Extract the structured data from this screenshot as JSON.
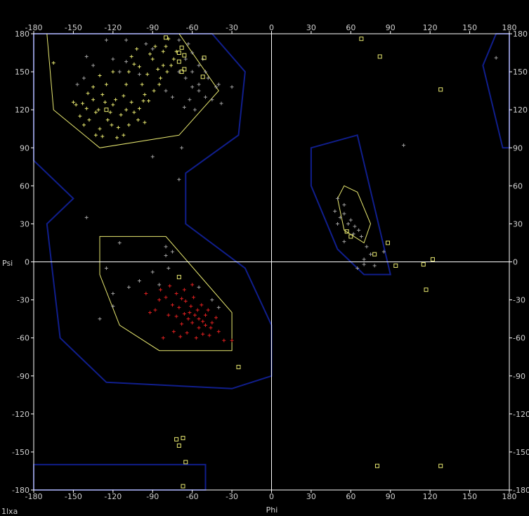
{
  "title": "1lxa",
  "chart_data": {
    "type": "scatter",
    "title": "1lxa",
    "xlabel": "Phi",
    "ylabel": "Psi",
    "xlim": [
      -180,
      180
    ],
    "ylim": [
      -180,
      180
    ],
    "xticks": [
      -180,
      -150,
      -120,
      -90,
      -60,
      -30,
      0,
      30,
      60,
      90,
      120,
      150,
      180
    ],
    "yticks": [
      -180,
      -150,
      -120,
      -90,
      -60,
      -30,
      0,
      30,
      60,
      90,
      120,
      150,
      180
    ],
    "grid": false,
    "zero_lines": true,
    "colors": {
      "background": "#000000",
      "axis": "#ffffff",
      "allowed_region": "#101e8c",
      "core_region": "#e8e870",
      "helix_residue": "#e02020",
      "sheet_residue": "#e8e870",
      "other_residue": "#a0a0a0",
      "glycine": "#e8e870"
    },
    "regions": [
      {
        "kind": "allowed",
        "points": [
          [
            -180,
            180
          ],
          [
            -60,
            180
          ],
          [
            -45,
            180
          ],
          [
            -20,
            150
          ],
          [
            -25,
            100
          ],
          [
            -65,
            70
          ],
          [
            -65,
            30
          ],
          [
            -20,
            -5
          ],
          [
            0,
            -50
          ],
          [
            0,
            -90
          ],
          [
            -30,
            -100
          ],
          [
            -125,
            -95
          ],
          [
            -160,
            -60
          ],
          [
            -170,
            30
          ],
          [
            -150,
            50
          ],
          [
            -180,
            80
          ]
        ]
      },
      {
        "kind": "allowed",
        "points": [
          [
            -180,
            -160
          ],
          [
            -50,
            -160
          ],
          [
            -50,
            -180
          ],
          [
            -180,
            -180
          ]
        ]
      },
      {
        "kind": "allowed",
        "points": [
          [
            170,
            180
          ],
          [
            180,
            180
          ],
          [
            180,
            90
          ],
          [
            175,
            90
          ],
          [
            160,
            155
          ]
        ]
      },
      {
        "kind": "allowed",
        "points": [
          [
            30,
            90
          ],
          [
            65,
            100
          ],
          [
            90,
            -10
          ],
          [
            70,
            -10
          ],
          [
            50,
            10
          ],
          [
            30,
            60
          ]
        ]
      },
      {
        "kind": "core",
        "points": [
          [
            -170,
            180
          ],
          [
            -70,
            180
          ],
          [
            -40,
            135
          ],
          [
            -70,
            100
          ],
          [
            -130,
            90
          ],
          [
            -165,
            120
          ]
        ]
      },
      {
        "kind": "core",
        "points": [
          [
            -130,
            20
          ],
          [
            -80,
            20
          ],
          [
            -55,
            -10
          ],
          [
            -30,
            -40
          ],
          [
            -30,
            -70
          ],
          [
            -85,
            -70
          ],
          [
            -115,
            -50
          ],
          [
            -130,
            -10
          ]
        ]
      },
      {
        "kind": "core",
        "points": [
          [
            55,
            60
          ],
          [
            65,
            55
          ],
          [
            75,
            30
          ],
          [
            70,
            15
          ],
          [
            55,
            25
          ],
          [
            50,
            50
          ]
        ]
      }
    ],
    "series": [
      {
        "type": "helix",
        "marker": "plus",
        "points": [
          [
            -72,
            -25
          ],
          [
            -68,
            -29
          ],
          [
            -65,
            -31
          ],
          [
            -62,
            -40
          ],
          [
            -58,
            -42
          ],
          [
            -55,
            -45
          ],
          [
            -52,
            -47
          ],
          [
            -50,
            -50
          ],
          [
            -48,
            -38
          ],
          [
            -45,
            -48
          ],
          [
            -55,
            -52
          ],
          [
            -60,
            -48
          ],
          [
            -63,
            -45
          ],
          [
            -66,
            -41
          ],
          [
            -70,
            -36
          ],
          [
            -75,
            -34
          ],
          [
            -80,
            -28
          ],
          [
            -85,
            -30
          ],
          [
            -88,
            -38
          ],
          [
            -92,
            -40
          ],
          [
            -95,
            -25
          ],
          [
            -78,
            -42
          ],
          [
            -74,
            -55
          ],
          [
            -57,
            -60
          ],
          [
            -52,
            -57
          ],
          [
            -40,
            -55
          ],
          [
            -42,
            -44
          ],
          [
            -46,
            -52
          ],
          [
            -61,
            -35
          ],
          [
            -68,
            -49
          ],
          [
            -82,
            -60
          ],
          [
            -72,
            -43
          ],
          [
            -64,
            -56
          ],
          [
            -56,
            -38
          ],
          [
            -50,
            -42
          ],
          [
            -59,
            -28
          ],
          [
            -36,
            -62
          ],
          [
            -30,
            -62
          ],
          [
            -77,
            -19
          ],
          [
            -84,
            -22
          ],
          [
            -66,
            -22
          ],
          [
            -60,
            -18
          ],
          [
            -47,
            -58
          ],
          [
            -53,
            -34
          ],
          [
            -69,
            -59
          ]
        ]
      },
      {
        "type": "sheet",
        "marker": "plus",
        "points": [
          [
            -165,
            157
          ],
          [
            -148,
            124
          ],
          [
            -145,
            115
          ],
          [
            -142,
            108
          ],
          [
            -140,
            121
          ],
          [
            -138,
            112
          ],
          [
            -135,
            128
          ],
          [
            -133,
            118
          ],
          [
            -131,
            120
          ],
          [
            -130,
            105
          ],
          [
            -128,
            132
          ],
          [
            -126,
            126
          ],
          [
            -124,
            112
          ],
          [
            -122,
            118
          ],
          [
            -120,
            124
          ],
          [
            -118,
            128
          ],
          [
            -116,
            106
          ],
          [
            -114,
            116
          ],
          [
            -112,
            131
          ],
          [
            -110,
            140
          ],
          [
            -108,
            150
          ],
          [
            -106,
            162
          ],
          [
            -104,
            156
          ],
          [
            -102,
            168
          ],
          [
            -100,
            154
          ],
          [
            -98,
            140
          ],
          [
            -96,
            132
          ],
          [
            -94,
            148
          ],
          [
            -92,
            164
          ],
          [
            -90,
            160
          ],
          [
            -88,
            170
          ],
          [
            -86,
            152
          ],
          [
            -84,
            145
          ],
          [
            -82,
            166
          ],
          [
            -80,
            170
          ],
          [
            -78,
            176
          ],
          [
            -76,
            155
          ],
          [
            -74,
            160
          ],
          [
            -72,
            166
          ],
          [
            -125,
            140
          ],
          [
            -120,
            150
          ],
          [
            -135,
            138
          ],
          [
            -130,
            147
          ],
          [
            -117,
            98
          ],
          [
            -112,
            100
          ],
          [
            -108,
            108
          ],
          [
            -104,
            118
          ],
          [
            -100,
            121
          ],
          [
            -97,
            127
          ],
          [
            -139,
            133
          ],
          [
            -143,
            125
          ],
          [
            -150,
            126
          ],
          [
            -128,
            99
          ],
          [
            -133,
            100
          ],
          [
            -121,
            108
          ],
          [
            -110,
            120
          ],
          [
            -106,
            126
          ],
          [
            -93,
            127
          ],
          [
            -89,
            135
          ],
          [
            -85,
            140
          ],
          [
            -82,
            155
          ],
          [
            -79,
            150
          ],
          [
            -96,
            110
          ],
          [
            -101,
            112
          ]
        ]
      },
      {
        "type": "other",
        "marker": "plus",
        "points": [
          [
            -70,
            150
          ],
          [
            -65,
            145
          ],
          [
            -60,
            138
          ],
          [
            -55,
            135
          ],
          [
            -50,
            130
          ],
          [
            -45,
            128
          ],
          [
            -40,
            140
          ],
          [
            -38,
            125
          ],
          [
            -30,
            138
          ],
          [
            -62,
            128
          ],
          [
            -58,
            120
          ],
          [
            -66,
            122
          ],
          [
            -55,
            155
          ],
          [
            -50,
            150
          ],
          [
            -70,
            65
          ],
          [
            -68,
            90
          ],
          [
            -90,
            83
          ],
          [
            -140,
            35
          ],
          [
            -115,
            15
          ],
          [
            -80,
            12
          ],
          [
            -75,
            8
          ],
          [
            -90,
            -8
          ],
          [
            -100,
            -15
          ],
          [
            -108,
            -20
          ],
          [
            -120,
            -25
          ],
          [
            -125,
            -5
          ],
          [
            -130,
            -45
          ],
          [
            -120,
            -35
          ],
          [
            -85,
            -18
          ],
          [
            -78,
            -5
          ],
          [
            -80,
            5
          ],
          [
            -120,
            160
          ],
          [
            -110,
            175
          ],
          [
            -125,
            175
          ],
          [
            -95,
            172
          ],
          [
            -90,
            168
          ],
          [
            -110,
            158
          ],
          [
            -100,
            148
          ],
          [
            -115,
            150
          ],
          [
            -65,
            160
          ],
          [
            -60,
            165
          ],
          [
            -55,
            140
          ],
          [
            -48,
            145
          ],
          [
            -42,
            138
          ],
          [
            -63,
            172
          ],
          [
            -140,
            162
          ],
          [
            -135,
            155
          ],
          [
            -142,
            145
          ],
          [
            -147,
            140
          ],
          [
            -80,
            135
          ],
          [
            -75,
            130
          ],
          [
            -52,
            160
          ],
          [
            -70,
            175
          ],
          [
            -60,
            150
          ],
          [
            50,
            50
          ],
          [
            55,
            45
          ],
          [
            55,
            38
          ],
          [
            60,
            33
          ],
          [
            63,
            28
          ],
          [
            66,
            25
          ],
          [
            68,
            20
          ],
          [
            58,
            30
          ],
          [
            52,
            35
          ],
          [
            48,
            40
          ],
          [
            50,
            30
          ],
          [
            62,
            22
          ],
          [
            72,
            12
          ],
          [
            70,
            2
          ],
          [
            70,
            -2
          ],
          [
            65,
            -5
          ],
          [
            75,
            6
          ],
          [
            78,
            -3
          ],
          [
            85,
            8
          ],
          [
            55,
            16
          ],
          [
            100,
            92
          ],
          [
            170,
            161
          ],
          [
            -45,
            -30
          ],
          [
            -40,
            -36
          ],
          [
            -55,
            -20
          ]
        ]
      },
      {
        "type": "glycine",
        "marker": "square",
        "points": [
          [
            -125,
            120
          ],
          [
            -80,
            177
          ],
          [
            -70,
            158
          ],
          [
            -68,
            150
          ],
          [
            -66,
            152
          ],
          [
            -70,
            165
          ],
          [
            -68,
            169
          ],
          [
            -66,
            163
          ],
          [
            -52,
            146
          ],
          [
            -51,
            161
          ],
          [
            -70,
            -12
          ],
          [
            -25,
            -83
          ],
          [
            -72,
            -140
          ],
          [
            -70,
            -145
          ],
          [
            -67,
            -139
          ],
          [
            -65,
            -158
          ],
          [
            -67,
            -177
          ],
          [
            68,
            176
          ],
          [
            82,
            162
          ],
          [
            128,
            136
          ],
          [
            60,
            20
          ],
          [
            57,
            24
          ],
          [
            78,
            6
          ],
          [
            88,
            15
          ],
          [
            94,
            -3
          ],
          [
            115,
            -2
          ],
          [
            122,
            2
          ],
          [
            117,
            -22
          ],
          [
            80,
            -161
          ],
          [
            128,
            -161
          ]
        ]
      }
    ]
  }
}
